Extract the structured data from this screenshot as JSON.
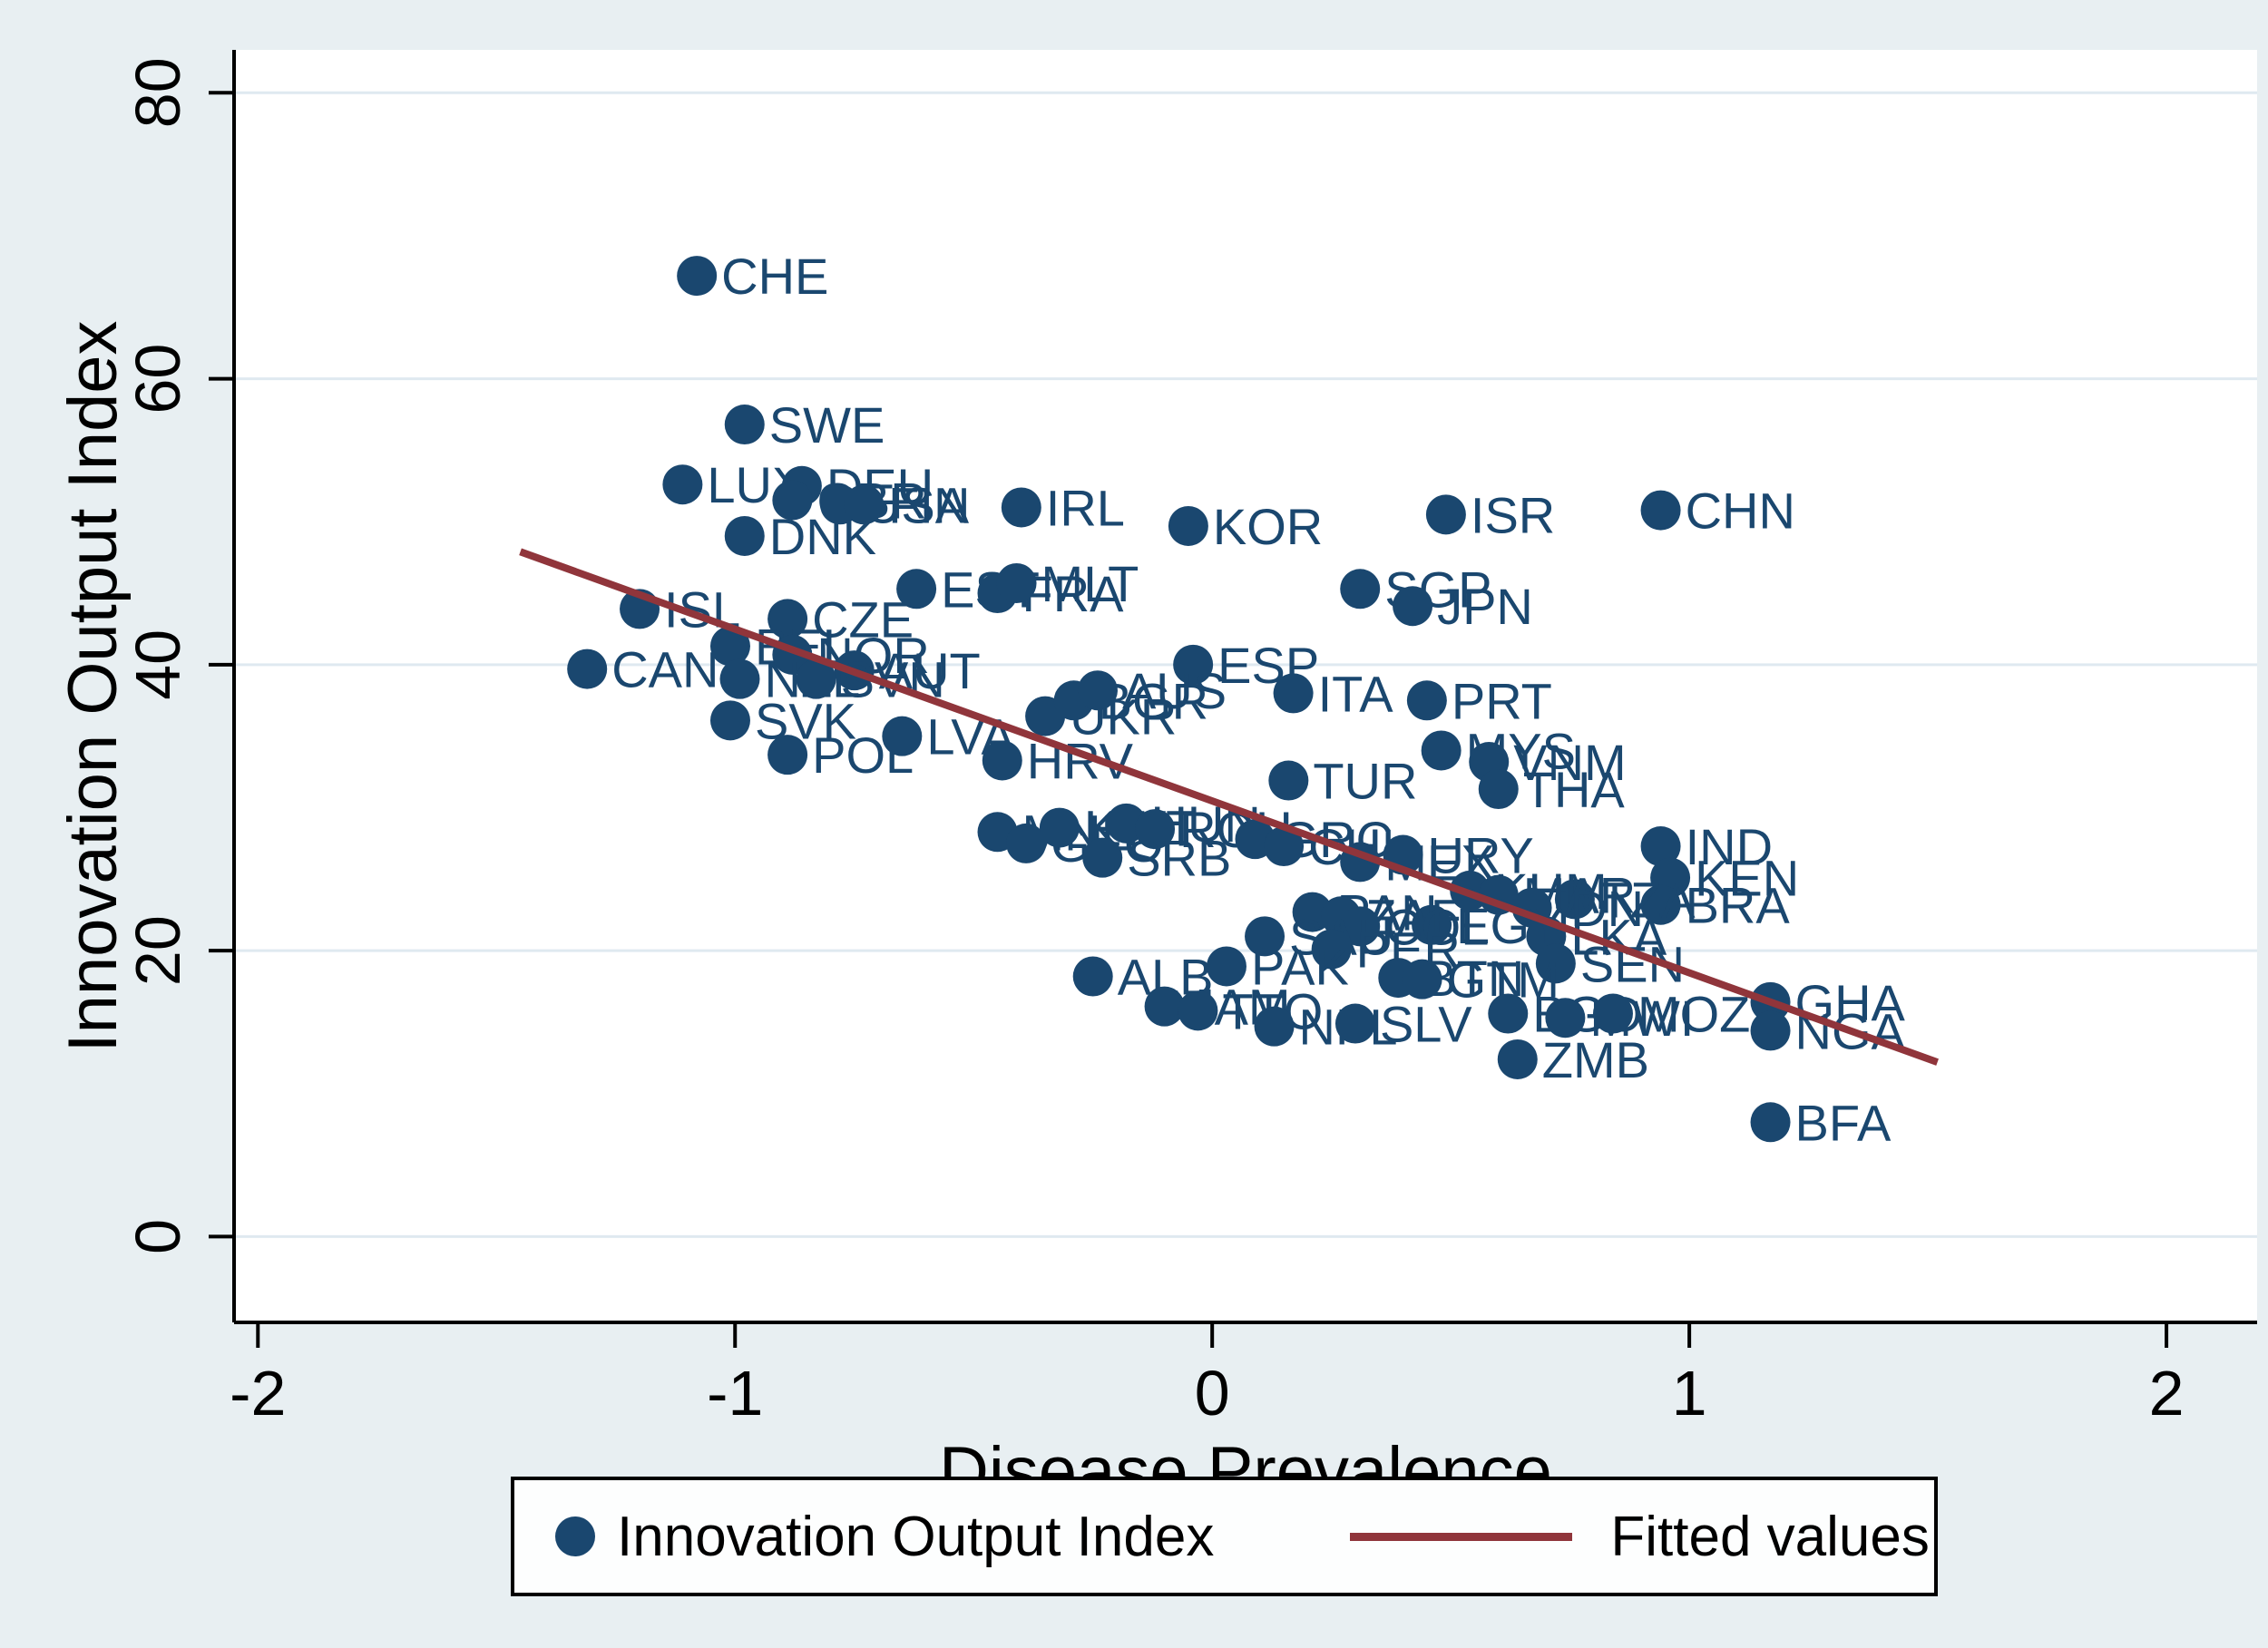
{
  "figure": {
    "background": "#e8eff2",
    "plot_background": "#ffffff",
    "grid_color": "#dfe9f0",
    "axis_color": "#000000",
    "marker_color": "#1a476f",
    "fit_color": "#90353b"
  },
  "legend": {
    "items": [
      {
        "label": "Innovation Output Index",
        "marker": "dot"
      },
      {
        "label": "Fitted values",
        "marker": "line"
      }
    ]
  },
  "chart_data": {
    "type": "scatter",
    "title": "",
    "xlabel": "Disease Prevalence",
    "ylabel": "Innovation Output Index",
    "x_ticks": [
      -2,
      -1,
      0,
      1,
      2
    ],
    "y_ticks": [
      0,
      20,
      40,
      60,
      80
    ],
    "xlim": [
      -2.05,
      2.19
    ],
    "ylim": [
      -6,
      83
    ],
    "grid": "horizontal",
    "legend_position": "bottom",
    "point_columns": [
      "country",
      "x",
      "y"
    ],
    "series": [
      {
        "name": "Innovation Output Index",
        "type": "scatter",
        "points": [
          [
            "CHE",
            -1.08,
            67.2
          ],
          [
            "SWE",
            -0.98,
            56.8
          ],
          [
            "LUX",
            -1.11,
            52.6
          ],
          [
            "DEU",
            -0.86,
            52.5
          ],
          [
            "GBR",
            -0.88,
            51.5
          ],
          [
            "USA",
            -0.78,
            51.2
          ],
          [
            "FIN",
            -0.73,
            51.2
          ],
          [
            "IRL",
            -0.4,
            51.0
          ],
          [
            "DNK",
            -0.98,
            49.0
          ],
          [
            "KOR",
            -0.05,
            49.7
          ],
          [
            "ISR",
            0.49,
            50.5
          ],
          [
            "CHN",
            0.94,
            50.8
          ],
          [
            "EST",
            -0.62,
            45.3
          ],
          [
            "FRA",
            -0.45,
            45.0
          ],
          [
            "MLT",
            -0.41,
            45.7
          ],
          [
            "SGP",
            0.31,
            45.3
          ],
          [
            "JPN",
            0.42,
            44.1
          ],
          [
            "ISL",
            -1.2,
            43.9
          ],
          [
            "CZE",
            -0.89,
            43.2
          ],
          [
            "CAN",
            -1.31,
            39.7
          ],
          [
            "BEL",
            -1.01,
            41.3
          ],
          [
            "NOR",
            -0.88,
            40.7
          ],
          [
            "AUT",
            -0.75,
            39.6
          ],
          [
            "NZL",
            -0.99,
            39.0
          ],
          [
            "SVN",
            -0.83,
            39.0
          ],
          [
            "SVK",
            -1.01,
            36.1
          ],
          [
            "POL",
            -0.89,
            33.7
          ],
          [
            "LVA",
            -0.65,
            35.0
          ],
          [
            "ESP",
            -0.04,
            40.0
          ],
          [
            "ITA",
            0.17,
            38.0
          ],
          [
            "PRT",
            0.45,
            37.5
          ],
          [
            "UKR",
            -0.35,
            36.4
          ],
          [
            "BGR",
            -0.29,
            37.5
          ],
          [
            "AUS",
            -0.24,
            38.2
          ],
          [
            "HRV",
            -0.44,
            33.3
          ],
          [
            "MYS",
            0.48,
            34.0
          ],
          [
            "VNM",
            0.58,
            33.2
          ],
          [
            "THA",
            0.6,
            31.3
          ],
          [
            "TUR",
            0.16,
            31.9
          ],
          [
            "MNE",
            -0.45,
            28.3
          ],
          [
            "GEO",
            -0.39,
            27.5
          ],
          [
            "KWT",
            -0.32,
            28.6
          ],
          [
            "HUN",
            -0.18,
            28.9
          ],
          [
            "ROU",
            -0.12,
            28.5
          ],
          [
            "SRB",
            -0.23,
            26.5
          ],
          [
            "GRC",
            0.09,
            27.8
          ],
          [
            "CHL",
            0.15,
            27.3
          ],
          [
            "MEX",
            0.31,
            26.2
          ],
          [
            "URY",
            0.4,
            26.7
          ],
          [
            "IND",
            0.94,
            27.3
          ],
          [
            "KEN",
            0.96,
            25.1
          ],
          [
            "BRA",
            0.94,
            23.2
          ],
          [
            "TZA",
            0.76,
            23.6
          ],
          [
            "KHM",
            0.54,
            24.2
          ],
          [
            "MAR",
            0.6,
            23.9
          ],
          [
            "IDN",
            0.67,
            23.0
          ],
          [
            "LKA",
            0.7,
            21.0
          ],
          [
            "EGY",
            0.46,
            21.8
          ],
          [
            "PAN",
            0.21,
            22.7
          ],
          [
            "ZAF",
            0.27,
            22.4
          ],
          [
            "COL",
            0.31,
            21.7
          ],
          [
            "SAU",
            0.11,
            21.0
          ],
          [
            "PER",
            0.25,
            20.1
          ],
          [
            "SEN",
            0.72,
            19.1
          ],
          [
            "PAK",
            0.03,
            18.9
          ],
          [
            "ALB",
            -0.25,
            18.2
          ],
          [
            "BTN",
            0.39,
            18.1
          ],
          [
            "GTM",
            0.44,
            18.0
          ],
          [
            "JAM",
            -0.1,
            16.1
          ],
          [
            "TTO",
            -0.03,
            15.8
          ],
          [
            "NPL",
            0.13,
            14.7
          ],
          [
            "SLV",
            0.3,
            14.9
          ],
          [
            "BGD",
            0.62,
            15.6
          ],
          [
            "MWI",
            0.74,
            15.3
          ],
          [
            "MOZ",
            0.84,
            15.6
          ],
          [
            "ZMB",
            0.64,
            12.4
          ],
          [
            "GHA",
            1.17,
            16.4
          ],
          [
            "NGA",
            1.17,
            14.4
          ],
          [
            "BFA",
            1.17,
            8.0
          ]
        ]
      },
      {
        "name": "Fitted values",
        "type": "line",
        "x1": -1.45,
        "y1": 47.9,
        "x2": 1.52,
        "y2": 12.2
      }
    ]
  }
}
